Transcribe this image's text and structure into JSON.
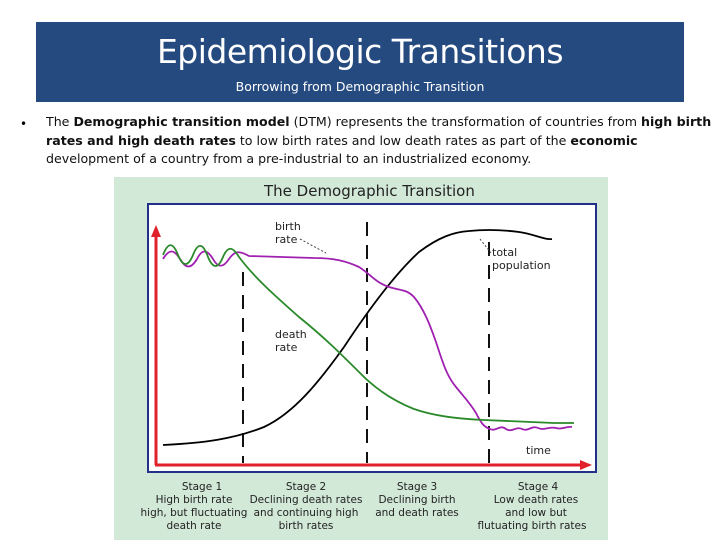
{
  "slide": {
    "title": "Epidemiologic Transitions",
    "subtitle": "Borrowing from Demographic Transition",
    "bullet": {
      "marker": "•",
      "t1": "The ",
      "b1": "Demographic transition model",
      "t2": " (DTM) represents the transformation of countries from ",
      "b2": "high birth rates and high death rates",
      "t3": " to low birth rates and low death rates as part of the ",
      "b3": "economic",
      "t4": " development of a country from a pre-industrial to an industrialized economy."
    }
  },
  "diagram": {
    "title": "The  Demographic  Transition",
    "labels": {
      "birth_1": "birth",
      "birth_2": "rate",
      "death_1": "death",
      "death_2": "rate",
      "pop_1": "total",
      "pop_2": "population",
      "time": "time"
    },
    "stages": [
      {
        "name": "Stage 1",
        "line1": "High  birth  rate",
        "line2": "high,  but  fluctuating",
        "line3": "death  rate"
      },
      {
        "name": "Stage 2",
        "line1": "Declining  death  rates",
        "line2": "and  continuing  high",
        "line3": "birth  rates"
      },
      {
        "name": "Stage 3",
        "line1": "Declining  birth",
        "line2": "and death rates",
        "line3": ""
      },
      {
        "name": "Stage 4",
        "line1": "Low  death  rates",
        "line2": "and  low  but",
        "line3": "flutuating  birth  rates"
      }
    ],
    "colors": {
      "birth_rate": "#a020b0",
      "death_rate": "#2a8a2a",
      "total_population": "#000000",
      "axes": "#e0202a",
      "frame": "#22308a"
    }
  }
}
